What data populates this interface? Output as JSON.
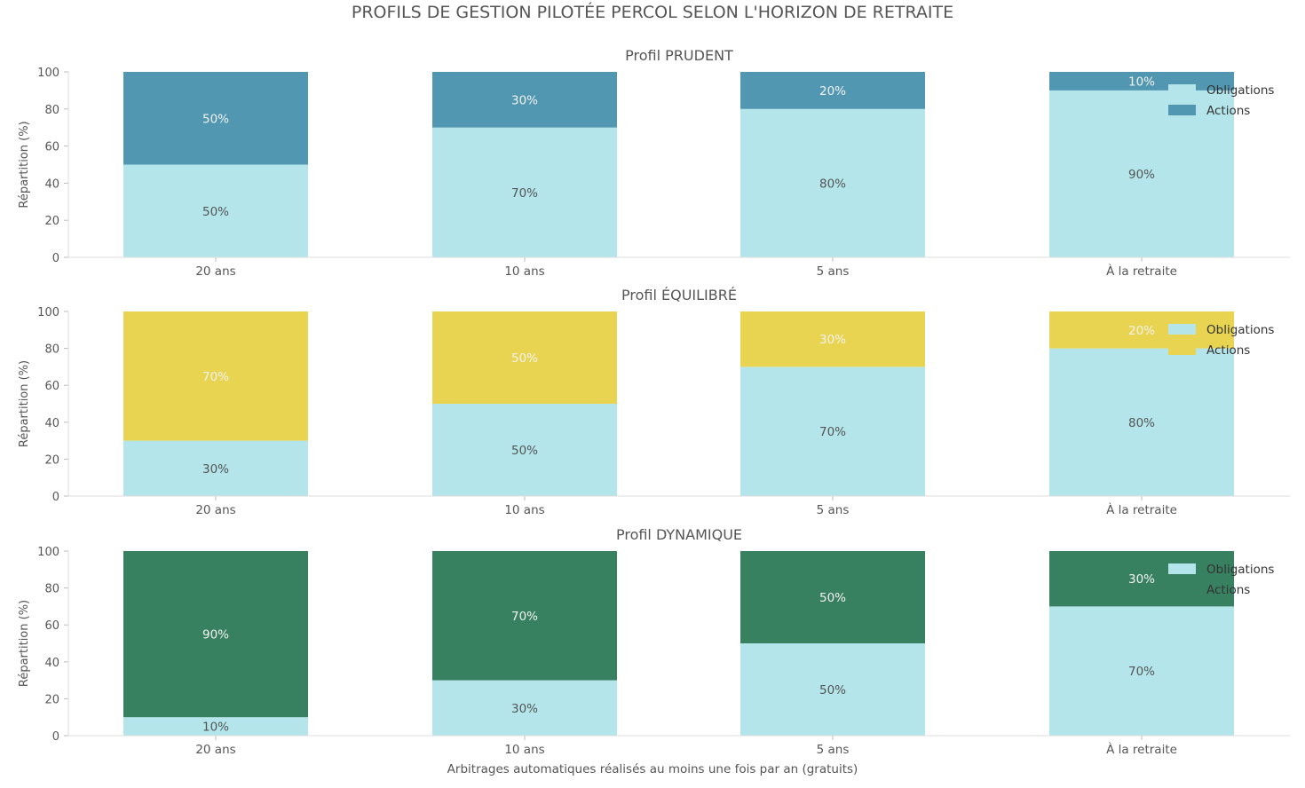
{
  "chart_data": {
    "type": "bar",
    "stacked": true,
    "title": "PROFILS DE GESTION PILOTÉE PERCOL SELON L'HORIZON DE RETRAITE",
    "xlabel": "Arbitrages automatiques réalisés au moins une fois par an (gratuits)",
    "ylabel": "Répartition (%)",
    "ylim": [
      0,
      100
    ],
    "yticks": [
      0,
      20,
      40,
      60,
      80,
      100
    ],
    "categories": [
      "20 ans",
      "10 ans",
      "5 ans",
      "À la retraite"
    ],
    "legend_position": "top-right",
    "panels": [
      {
        "title": "Profil PRUDENT",
        "series": [
          {
            "name": "Obligations",
            "color": "#b3e5ea",
            "values": [
              50,
              70,
              80,
              90
            ]
          },
          {
            "name": "Actions",
            "color": "#5197b1",
            "values": [
              50,
              30,
              20,
              10
            ]
          }
        ]
      },
      {
        "title": "Profil ÉQUILIBRÉ",
        "series": [
          {
            "name": "Obligations",
            "color": "#b3e5ea",
            "values": [
              30,
              50,
              70,
              80
            ]
          },
          {
            "name": "Actions",
            "color": "#e8d451",
            "values": [
              70,
              50,
              30,
              20
            ]
          }
        ]
      },
      {
        "title": "Profil DYNAMIQUE",
        "series": [
          {
            "name": "Obligations",
            "color": "#b3e5ea",
            "values": [
              10,
              30,
              50,
              70
            ]
          },
          {
            "name": "Actions",
            "color": "#388160",
            "values": [
              90,
              70,
              50,
              30
            ]
          }
        ]
      }
    ]
  },
  "colors": {
    "text": "#555555",
    "axis": "#dddddd",
    "label_on_dark": "#f2f2f2",
    "label_on_light": "#555555",
    "legend_text": "#333333"
  }
}
